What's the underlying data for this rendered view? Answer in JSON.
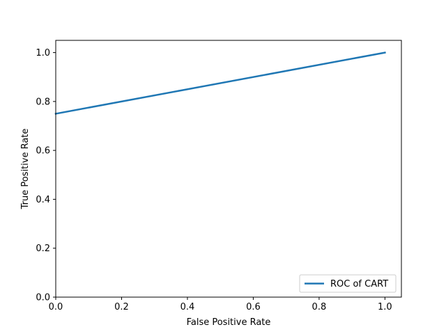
{
  "chart_data": {
    "type": "line",
    "title": "",
    "xlabel": "False Positive Rate",
    "ylabel": "True Positive Rate",
    "xlim": [
      0.0,
      1.05
    ],
    "ylim": [
      0.0,
      1.05
    ],
    "xticks": [
      "0.0",
      "0.2",
      "0.4",
      "0.6",
      "0.8",
      "1.0"
    ],
    "yticks": [
      "0.0",
      "0.2",
      "0.4",
      "0.6",
      "0.8",
      "1.0"
    ],
    "grid": false,
    "legend_position": "lower-right",
    "series": [
      {
        "name": "ROC of CART",
        "color": "#1f77b4",
        "x": [
          0.0,
          1.0
        ],
        "y": [
          0.75,
          1.0
        ]
      }
    ]
  }
}
